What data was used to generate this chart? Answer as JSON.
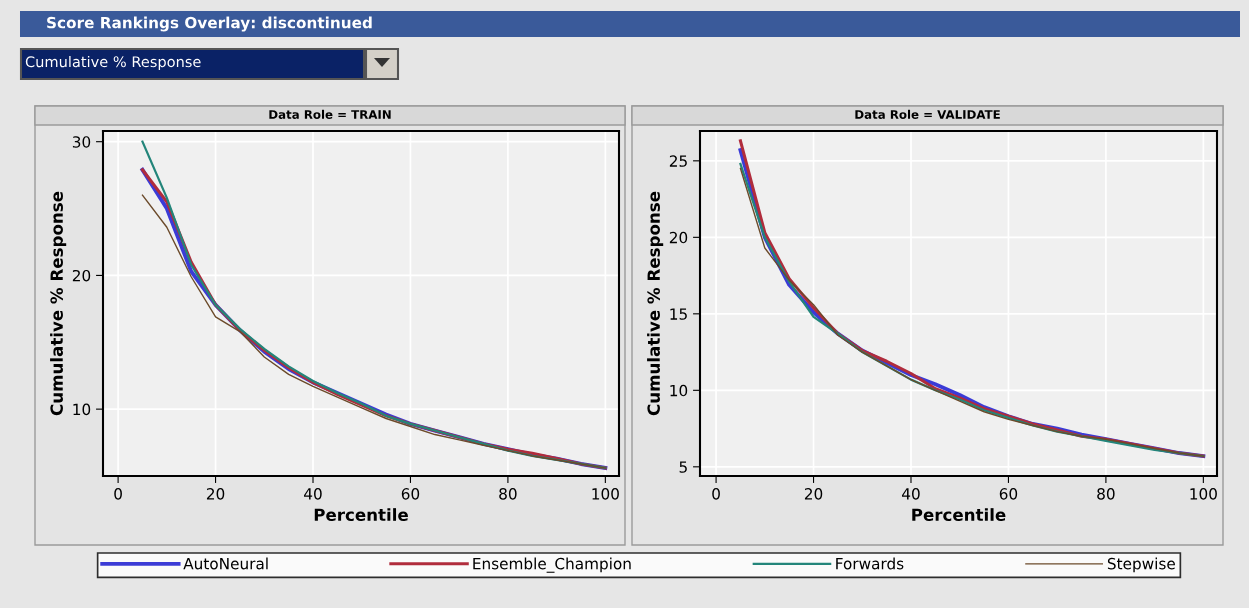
{
  "chart_data": [
    {
      "type": "line",
      "title": "Data Role = TRAIN",
      "xlabel": "Percentile",
      "ylabel": "Cumulative % Response",
      "annotations": [
        "Score Rankings Overlay: discontinued",
        "Cumulative % Response"
      ],
      "x": [
        5,
        10,
        15,
        20,
        25,
        30,
        35,
        40,
        45,
        50,
        55,
        60,
        65,
        70,
        75,
        80,
        85,
        90,
        95,
        100
      ],
      "series": [
        {
          "name": "AutoNeural",
          "color": "#3b3bd6",
          "values": [
            27.9,
            25.0,
            20.3,
            17.8,
            15.9,
            14.3,
            13.0,
            12.0,
            11.2,
            10.4,
            9.6,
            8.9,
            8.4,
            7.9,
            7.4,
            7.0,
            6.6,
            6.3,
            5.9,
            5.6
          ]
        },
        {
          "name": "Ensemble_Champion",
          "color": "#b02c3c",
          "values": [
            27.9,
            25.5,
            21.0,
            17.8,
            15.9,
            14.4,
            13.1,
            12.0,
            11.1,
            10.3,
            9.5,
            8.9,
            8.4,
            7.9,
            7.4,
            7.0,
            6.7,
            6.3,
            5.9,
            5.6
          ]
        },
        {
          "name": "Forwards",
          "color": "#23857a",
          "values": [
            30.0,
            25.8,
            20.8,
            17.8,
            16.0,
            14.5,
            13.2,
            12.1,
            11.2,
            10.4,
            9.5,
            8.9,
            8.4,
            7.9,
            7.4,
            6.9,
            6.5,
            6.2,
            5.9,
            5.6
          ]
        },
        {
          "name": "Stepwise",
          "color": "#6b4a2a",
          "values": [
            26.0,
            23.6,
            19.9,
            16.9,
            15.8,
            13.9,
            12.6,
            11.7,
            10.9,
            10.1,
            9.3,
            8.7,
            8.1,
            7.7,
            7.3,
            6.9,
            6.5,
            6.2,
            5.9,
            5.6
          ]
        }
      ],
      "xlim": [
        -3.1,
        102.8
      ],
      "ylim": [
        5.0,
        30.8
      ],
      "xticks": [
        0,
        20,
        40,
        60,
        80,
        100
      ],
      "yticks": [
        10,
        20,
        30
      ],
      "grid": true,
      "legend": "bottom",
      "line_style": "solid"
    },
    {
      "type": "line",
      "title": "Data Role = VALIDATE",
      "xlabel": "Percentile",
      "ylabel": "Cumulative % Response",
      "x": [
        5,
        10,
        15,
        20,
        25,
        30,
        35,
        40,
        45,
        50,
        55,
        60,
        65,
        70,
        75,
        80,
        85,
        90,
        95,
        100
      ],
      "series": [
        {
          "color": "#3b3bd6",
          "values": [
            25.7,
            20.0,
            16.9,
            15.1,
            13.7,
            12.6,
            11.8,
            11.0,
            10.4,
            9.7,
            8.9,
            8.3,
            7.8,
            7.5,
            7.1,
            6.8,
            6.5,
            6.2,
            5.9,
            5.7
          ]
        },
        {
          "color": "#b02c3c",
          "values": [
            26.3,
            20.3,
            17.3,
            15.4,
            13.7,
            12.6,
            11.9,
            11.1,
            10.1,
            9.5,
            8.8,
            8.3,
            7.8,
            7.4,
            7.0,
            6.8,
            6.5,
            6.2,
            5.9,
            5.7
          ]
        },
        {
          "color": "#23857a",
          "values": [
            24.8,
            20.0,
            17.1,
            14.8,
            13.7,
            12.5,
            11.6,
            10.7,
            10.0,
            9.4,
            8.7,
            8.2,
            7.7,
            7.3,
            7.0,
            6.7,
            6.4,
            6.1,
            5.9,
            5.7
          ]
        },
        {
          "color": "#6b4a2a",
          "values": [
            24.5,
            19.3,
            17.2,
            15.6,
            13.6,
            12.5,
            11.6,
            10.7,
            10.0,
            9.3,
            8.6,
            8.1,
            7.7,
            7.3,
            7.0,
            6.8,
            6.5,
            6.2,
            5.9,
            5.7
          ]
        }
      ],
      "xlim": [
        -3.3,
        102.8
      ],
      "ylim": [
        4.4,
        26.95
      ],
      "xticks": [
        0,
        20,
        40,
        60,
        80,
        100
      ],
      "yticks": [
        5,
        10,
        15,
        20,
        25
      ],
      "grid": true,
      "line_style": "solid"
    }
  ]
}
